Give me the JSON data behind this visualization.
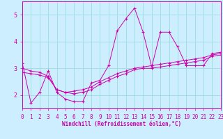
{
  "title": "",
  "xlabel": "Windchill (Refroidissement éolien,°C)",
  "background_color": "#cceeff",
  "line_color": "#cc00aa",
  "xlim": [
    0,
    23
  ],
  "ylim": [
    1.5,
    5.5
  ],
  "xticks": [
    0,
    1,
    2,
    3,
    4,
    5,
    6,
    7,
    8,
    9,
    10,
    11,
    12,
    13,
    14,
    15,
    16,
    17,
    18,
    19,
    20,
    21,
    22,
    23
  ],
  "yticks": [
    2,
    3,
    4,
    5
  ],
  "grid_color": "#99dddd",
  "line1_x": [
    0,
    1,
    2,
    3,
    4,
    5,
    6,
    7,
    8,
    9,
    10,
    11,
    12,
    13,
    14,
    15,
    16,
    17,
    18,
    19,
    20,
    21,
    22,
    23
  ],
  "line1_y": [
    3.2,
    1.7,
    2.1,
    2.9,
    2.1,
    1.85,
    1.75,
    1.75,
    2.45,
    2.55,
    3.1,
    4.4,
    4.85,
    5.25,
    4.35,
    3.05,
    4.35,
    4.35,
    3.8,
    3.1,
    3.1,
    3.1,
    3.55,
    3.6
  ],
  "line2_x": [
    0,
    1,
    2,
    3,
    4,
    5,
    6,
    7,
    8,
    9,
    10,
    11,
    12,
    13,
    14,
    15,
    16,
    17,
    18,
    19,
    20,
    21,
    22,
    23
  ],
  "line2_y": [
    3.0,
    2.9,
    2.85,
    2.7,
    2.2,
    2.1,
    2.15,
    2.2,
    2.3,
    2.5,
    2.65,
    2.8,
    2.9,
    3.0,
    3.05,
    3.1,
    3.15,
    3.2,
    3.25,
    3.3,
    3.35,
    3.4,
    3.5,
    3.55
  ],
  "line3_x": [
    0,
    1,
    2,
    3,
    4,
    5,
    6,
    7,
    8,
    9,
    10,
    11,
    12,
    13,
    14,
    15,
    16,
    17,
    18,
    19,
    20,
    21,
    22,
    23
  ],
  "line3_y": [
    2.85,
    2.8,
    2.75,
    2.65,
    2.2,
    2.1,
    2.05,
    2.1,
    2.2,
    2.4,
    2.55,
    2.7,
    2.8,
    2.95,
    3.0,
    3.0,
    3.05,
    3.1,
    3.15,
    3.2,
    3.25,
    3.3,
    3.45,
    3.5
  ],
  "tick_fontsize": 5.5,
  "xlabel_fontsize": 5.5,
  "lw": 0.7,
  "ms": 2.5
}
